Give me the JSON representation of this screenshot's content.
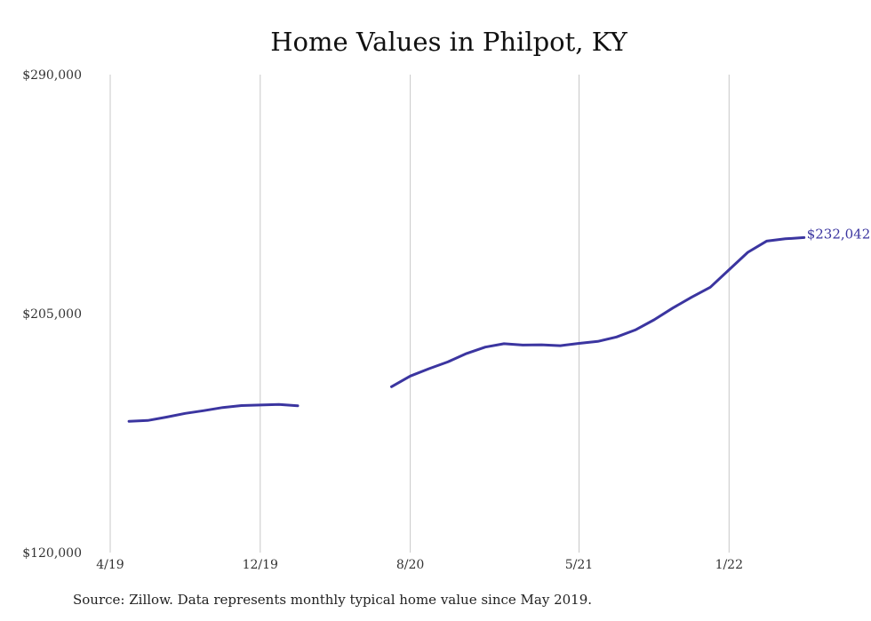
{
  "chart_data": {
    "type": "line",
    "title": "Home Values in Philpot, KY",
    "xlabel": "",
    "ylabel": "",
    "ylim": [
      120000,
      290000
    ],
    "y_ticks": [
      "$120,000",
      "$205,000",
      "$290,000"
    ],
    "x_ticks": [
      "4/19",
      "12/19",
      "8/20",
      "5/21",
      "1/22"
    ],
    "grid": "vertical",
    "series": [
      {
        "segments": [
          [
            {
              "x": "2019-05",
              "y": 166700
            },
            {
              "x": "2019-06",
              "y": 167000
            },
            {
              "x": "2019-07",
              "y": 168200
            },
            {
              "x": "2019-08",
              "y": 169500
            },
            {
              "x": "2019-09",
              "y": 170500
            },
            {
              "x": "2019-10",
              "y": 171600
            },
            {
              "x": "2019-11",
              "y": 172300
            },
            {
              "x": "2019-12",
              "y": 172500
            },
            {
              "x": "2020-01",
              "y": 172700
            },
            {
              "x": "2020-02",
              "y": 172200
            }
          ],
          [
            {
              "x": "2020-07",
              "y": 179000
            },
            {
              "x": "2020-08",
              "y": 182800
            },
            {
              "x": "2020-09",
              "y": 185400
            },
            {
              "x": "2020-10",
              "y": 187800
            },
            {
              "x": "2020-11",
              "y": 190800
            },
            {
              "x": "2020-12",
              "y": 193100
            },
            {
              "x": "2021-01",
              "y": 194300
            },
            {
              "x": "2021-02",
              "y": 193800
            },
            {
              "x": "2021-03",
              "y": 193900
            },
            {
              "x": "2021-04",
              "y": 193600
            },
            {
              "x": "2021-05",
              "y": 194400
            },
            {
              "x": "2021-06",
              "y": 195100
            },
            {
              "x": "2021-07",
              "y": 196700
            },
            {
              "x": "2021-08",
              "y": 199200
            },
            {
              "x": "2021-09",
              "y": 202800
            },
            {
              "x": "2021-10",
              "y": 207000
            },
            {
              "x": "2021-11",
              "y": 210800
            },
            {
              "x": "2021-12",
              "y": 214400
            },
            {
              "x": "2022-01",
              "y": 220600
            },
            {
              "x": "2022-02",
              "y": 226800
            },
            {
              "x": "2022-03",
              "y": 230800
            },
            {
              "x": "2022-04",
              "y": 231600
            },
            {
              "x": "2022-05",
              "y": 232042
            }
          ]
        ],
        "color": "#3b35a0"
      }
    ],
    "end_label": "$232,042"
  },
  "source_note": "Source: Zillow. Data represents monthly typical home value since May 2019."
}
